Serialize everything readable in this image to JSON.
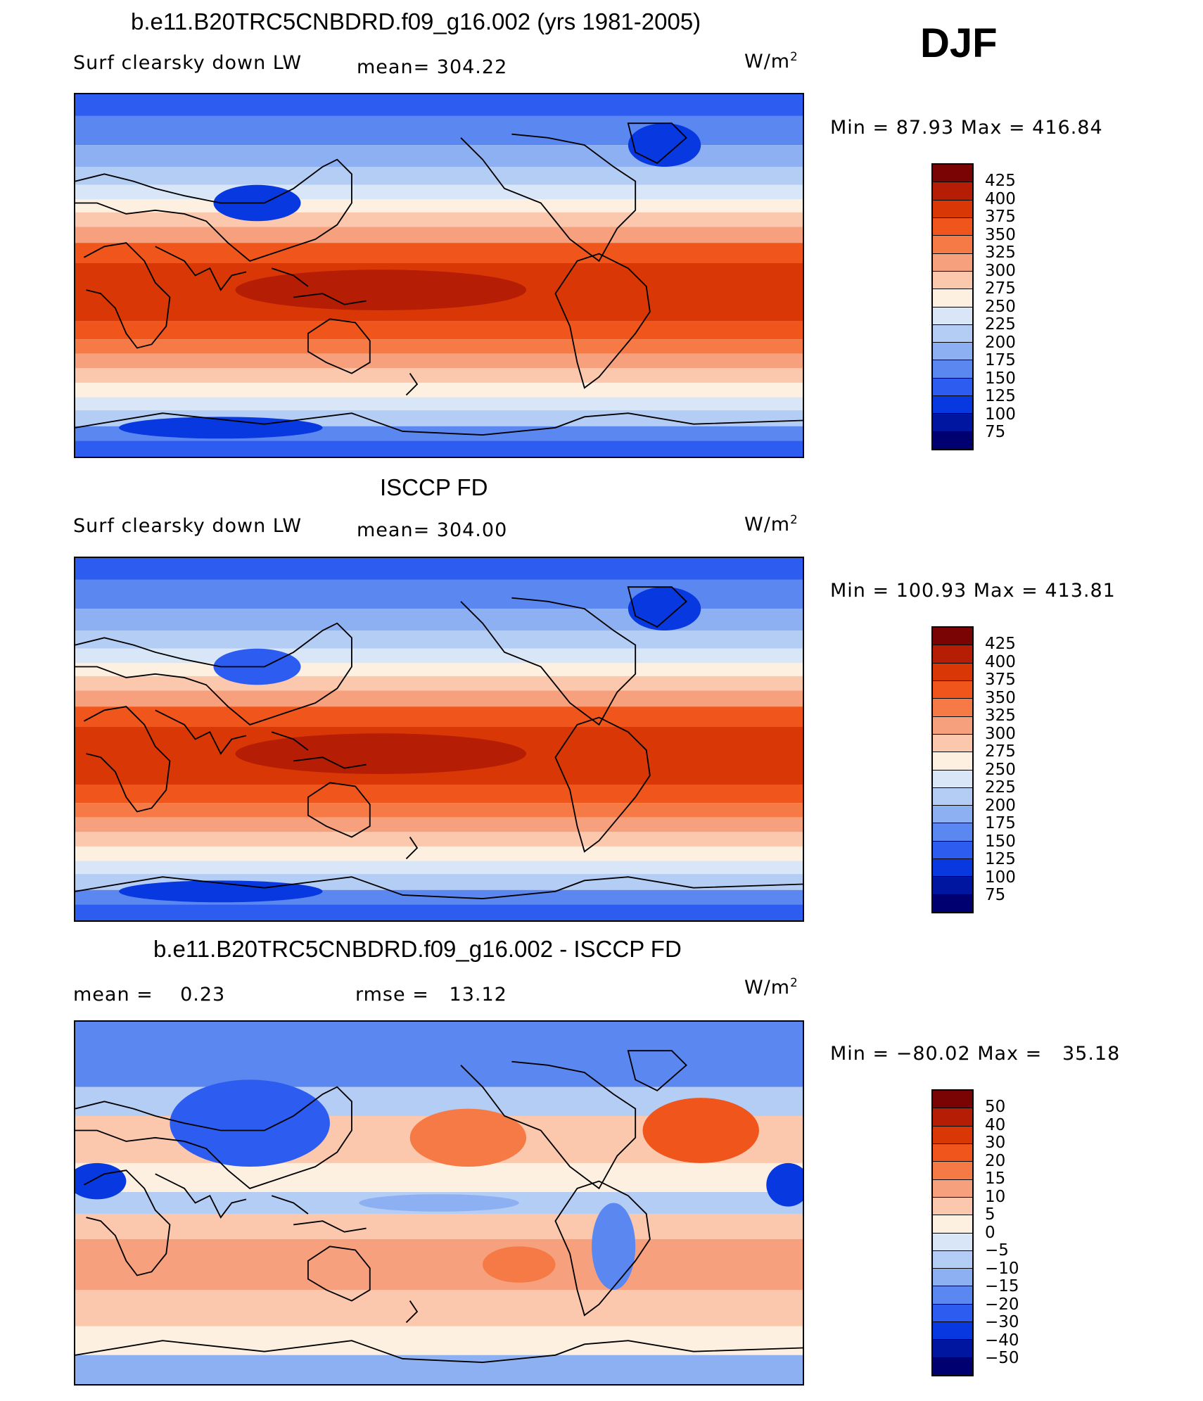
{
  "season": "DJF",
  "panels": [
    {
      "title": "b.e11.B20TRC5CNBDRD.f09_g16.002 (yrs 1981-2005)",
      "left_label": "Surf clearsky down LW",
      "mid_label": "mean= 304.22",
      "units_base": "W/m",
      "units_sup": "2",
      "minmax": "Min =  87.93 Max = 416.84",
      "colorbar_labels": [
        "425",
        "400",
        "375",
        "350",
        "325",
        "300",
        "275",
        "250",
        "225",
        "200",
        "175",
        "150",
        "125",
        "100",
        "75"
      ],
      "colorbar_colors": [
        "#7a0403",
        "#b51e05",
        "#d93806",
        "#f0551c",
        "#f67a45",
        "#f7a07e",
        "#fbc8ad",
        "#fdf0e0",
        "#d8e6f8",
        "#b4cdf4",
        "#8db0f2",
        "#5b87f0",
        "#2c5cf0",
        "#0838e0",
        "#0015a0",
        "#000070"
      ]
    },
    {
      "title": "ISCCP FD",
      "left_label": "Surf clearsky down LW",
      "mid_label": "mean= 304.00",
      "units_base": "W/m",
      "units_sup": "2",
      "minmax": "Min = 100.93 Max = 413.81",
      "colorbar_labels": [
        "425",
        "400",
        "375",
        "350",
        "325",
        "300",
        "275",
        "250",
        "225",
        "200",
        "175",
        "150",
        "125",
        "100",
        "75"
      ],
      "colorbar_colors": [
        "#7a0403",
        "#b51e05",
        "#d93806",
        "#f0551c",
        "#f67a45",
        "#f7a07e",
        "#fbc8ad",
        "#fdf0e0",
        "#d8e6f8",
        "#b4cdf4",
        "#8db0f2",
        "#5b87f0",
        "#2c5cf0",
        "#0838e0",
        "#0015a0",
        "#000070"
      ]
    },
    {
      "title": "b.e11.B20TRC5CNBDRD.f09_g16.002 - ISCCP FD",
      "left_label": "mean =    0.23",
      "mid_label": "rmse =   13.12",
      "units_base": "W/m",
      "units_sup": "2",
      "minmax": "Min = −80.02 Max =   35.18",
      "colorbar_labels": [
        "50",
        "40",
        "30",
        "20",
        "15",
        "10",
        "5",
        "0",
        "−5",
        "−10",
        "−15",
        "−20",
        "−30",
        "−40",
        "−50"
      ],
      "colorbar_colors": [
        "#7a0403",
        "#b51e05",
        "#d93806",
        "#f0551c",
        "#f67a45",
        "#f7a07e",
        "#fbc8ad",
        "#fdf0e0",
        "#d8e6f8",
        "#b4cdf4",
        "#8db0f2",
        "#5b87f0",
        "#2c5cf0",
        "#0838e0",
        "#0015a0",
        "#000070"
      ]
    }
  ]
}
